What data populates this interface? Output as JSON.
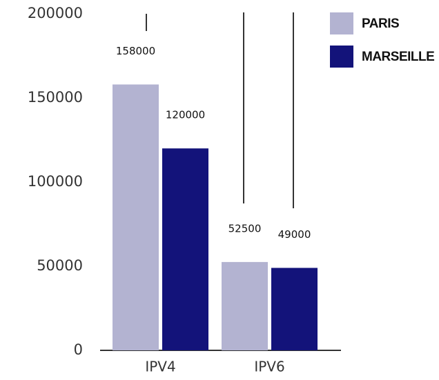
{
  "chart_data": {
    "type": "bar",
    "categories": [
      "IPV4",
      "IPV6"
    ],
    "series": [
      {
        "name": "PARIS",
        "color": "#b3b3d1",
        "values": [
          158000,
          52500
        ]
      },
      {
        "name": "MARSEILLE",
        "color": "#13137a",
        "values": [
          120000,
          49000
        ]
      }
    ],
    "ylim": [
      0,
      200000
    ],
    "yticks": [
      0,
      50000,
      100000,
      150000,
      200000
    ],
    "legend": "top-right",
    "grid": false
  }
}
